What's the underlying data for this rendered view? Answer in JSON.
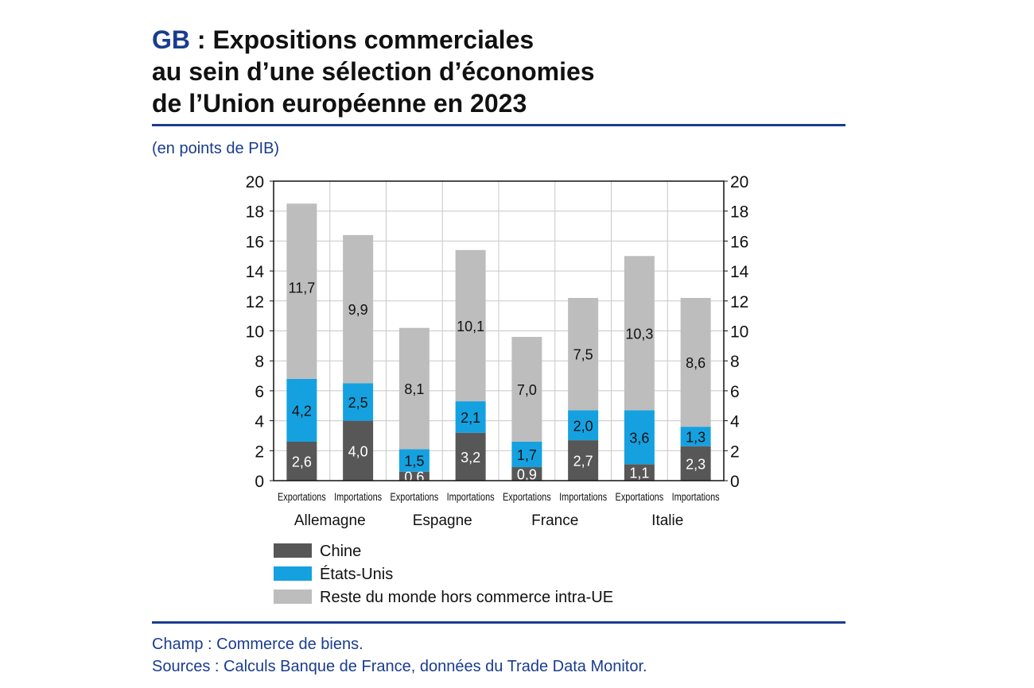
{
  "header": {
    "prefix": "GB",
    "title_line1_rest": " : Expositions commerciales",
    "title_line2": "au sein d’une sélection d’économies",
    "title_line3": "de l’Union européenne en 2023",
    "unit_note": "(en points de PIB)"
  },
  "footer": {
    "scope": "Champ : Commerce de biens.",
    "sources": "Sources : Calculs Banque de France, données du Trade Data Monitor."
  },
  "colors": {
    "accent": "#1a3c8f",
    "chine": "#575757",
    "etats_unis": "#15a1e0",
    "reste": "#bdbdbd"
  },
  "chart_data": {
    "type": "bar",
    "stacked": true,
    "title": "Expositions commerciales au sein d’une sélection d’économies de l’Union européenne en 2023",
    "ylabel": "(en points de PIB)",
    "ylim": [
      0,
      20
    ],
    "yticks": [
      0,
      2,
      4,
      6,
      8,
      10,
      12,
      14,
      16,
      18,
      20
    ],
    "grid": true,
    "legend_position": "bottom",
    "groups": [
      "Allemagne",
      "Espagne",
      "France",
      "Italie"
    ],
    "categories": [
      "Exportations",
      "Importations",
      "Exportations",
      "Importations",
      "Exportations",
      "Importations",
      "Exportations",
      "Importations"
    ],
    "series": [
      {
        "name": "Chine",
        "color": "#575757",
        "values": [
          2.6,
          4.0,
          0.6,
          3.2,
          0.9,
          2.7,
          1.1,
          2.3
        ],
        "labels": [
          "2,6",
          "4,0",
          "0,6",
          "3,2",
          "0,9",
          "2,7",
          "1,1",
          "2,3"
        ]
      },
      {
        "name": "États-Unis",
        "color": "#15a1e0",
        "values": [
          4.2,
          2.5,
          1.5,
          2.1,
          1.7,
          2.0,
          3.6,
          1.3
        ],
        "labels": [
          "4,2",
          "2,5",
          "1,5",
          "2,1",
          "1,7",
          "2,0",
          "3,6",
          "1,3"
        ]
      },
      {
        "name": "Reste du monde hors commerce intra-UE",
        "color": "#bdbdbd",
        "values": [
          11.7,
          9.9,
          8.1,
          10.1,
          7.0,
          7.5,
          10.3,
          8.6
        ],
        "labels": [
          "11,7",
          "9,9",
          "8,1",
          "10,1",
          "7,0",
          "7,5",
          "10,3",
          "8,6"
        ]
      }
    ]
  }
}
